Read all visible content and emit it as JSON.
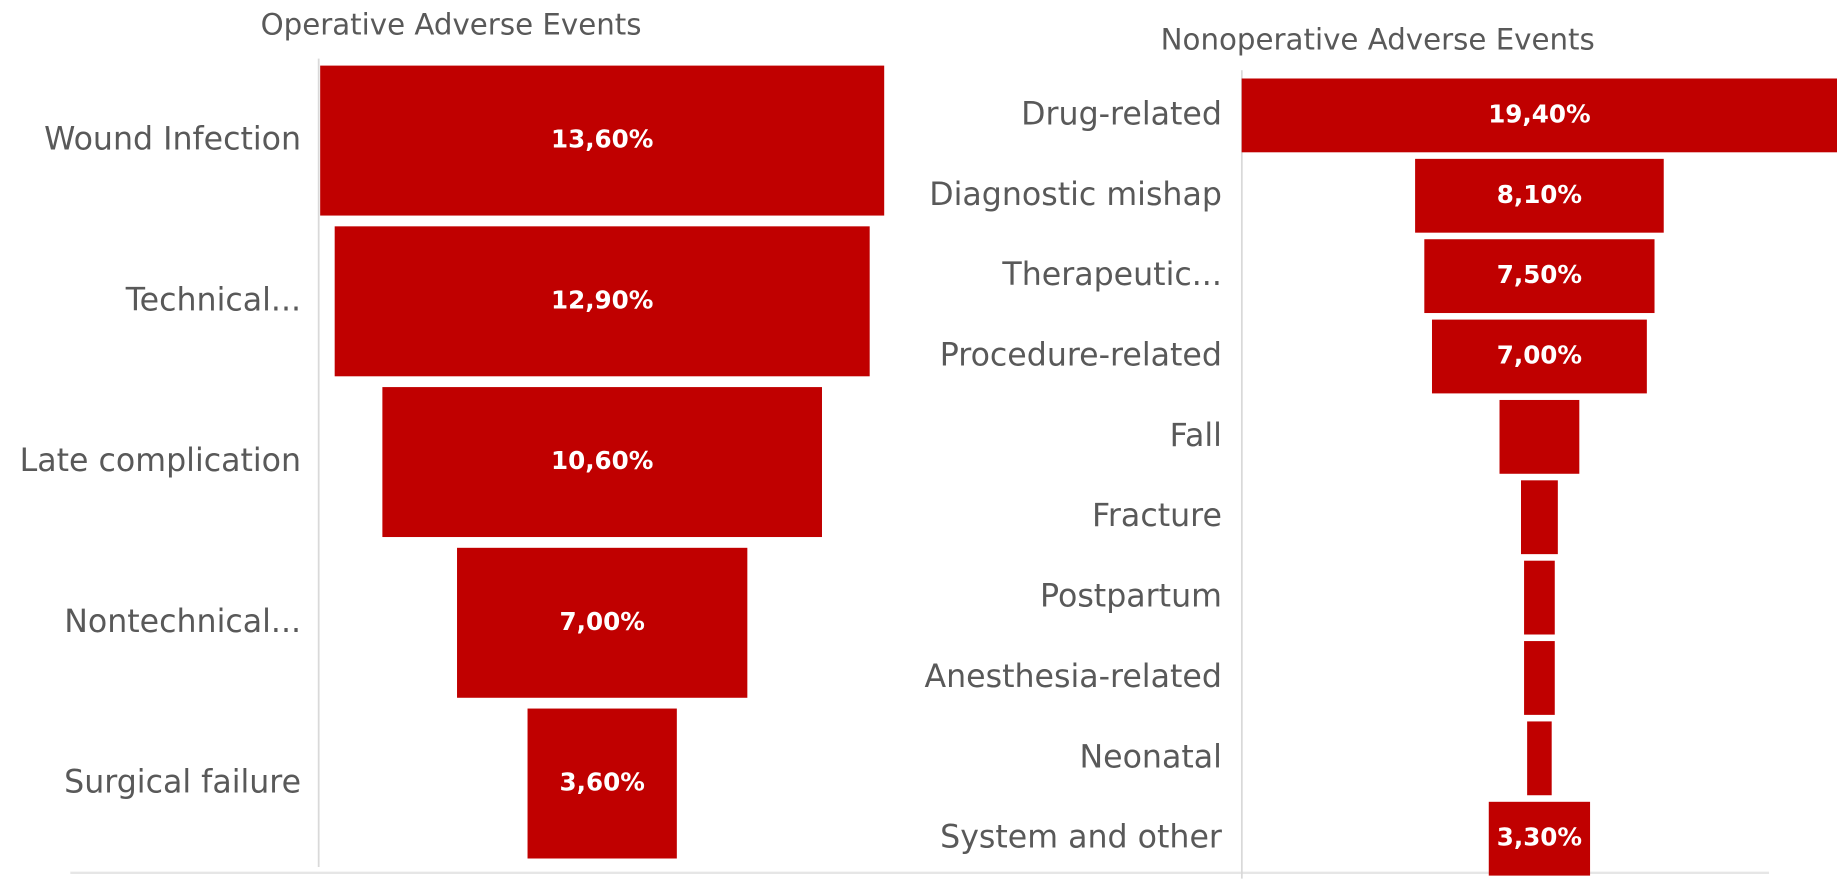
{
  "chart_data": [
    {
      "type": "funnel",
      "title": "Operative Adverse Events",
      "categories": [
        "Wound Infection",
        "Technical...",
        "Late complication",
        "Nontechnical...",
        "Surgical failure"
      ],
      "values": [
        13.6,
        12.9,
        10.6,
        7.0,
        3.6
      ],
      "value_labels": [
        "13,60%",
        "12,90%",
        "10,60%",
        "7,00%",
        "3,60%"
      ],
      "color": "#c00000"
    },
    {
      "type": "funnel",
      "title": "Nonoperative Adverse Events",
      "categories": [
        "Drug-related",
        "Diagnostic mishap",
        "Therapeutic...",
        "Procedure-related",
        "Fall",
        "Fracture",
        "Postpartum",
        "Anesthesia-related",
        "Neonatal",
        "System and other"
      ],
      "values": [
        19.4,
        8.1,
        7.5,
        7.0,
        2.6,
        1.2,
        1.0,
        1.0,
        0.8,
        3.3
      ],
      "value_labels": [
        "19,40%",
        "8,10%",
        "7,50%",
        "7,00%",
        null,
        null,
        null,
        null,
        null,
        "3,30%"
      ],
      "color": "#c00000"
    }
  ]
}
